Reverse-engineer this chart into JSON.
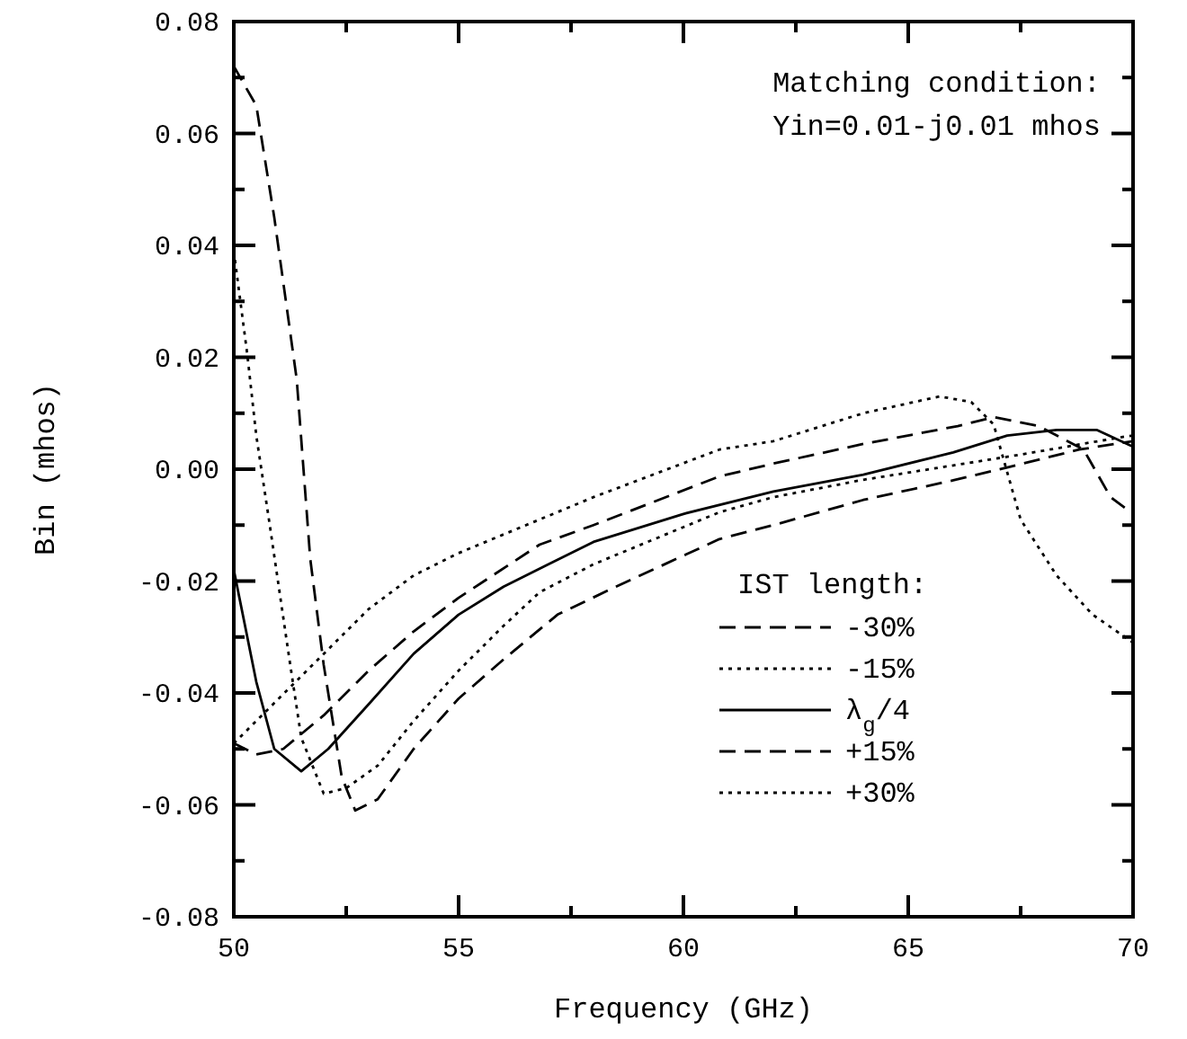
{
  "chart_data": {
    "type": "line",
    "xlabel": "Frequency (GHz)",
    "ylabel": "Bin (mhos)",
    "legend_title": "IST length:",
    "legend": "bottom right",
    "grid": false,
    "annotations": [
      "Matching condition:",
      "Yin=0.01-j0.01 mhos"
    ],
    "xlim": [
      50,
      70
    ],
    "xticks": [
      50,
      {
        "value": 52.5,
        "label": null
      },
      55,
      {
        "value": 57.5,
        "label": null
      },
      60,
      {
        "value": 62.5,
        "label": null
      },
      65,
      {
        "value": 67.5,
        "label": null
      },
      70
    ],
    "ylim": [
      -0.08,
      0.08
    ],
    "yticks": [
      {
        "value": -0.08,
        "label": "-0.08"
      },
      {
        "value": -0.07,
        "label": null
      },
      {
        "value": -0.06,
        "label": "-0.06"
      },
      {
        "value": -0.05,
        "label": null
      },
      {
        "value": -0.04,
        "label": "-0.04"
      },
      {
        "value": -0.03,
        "label": null
      },
      {
        "value": -0.02,
        "label": "-0.02"
      },
      {
        "value": -0.01,
        "label": null
      },
      {
        "value": 0,
        "label": "0.00"
      },
      {
        "value": 0.01,
        "label": null
      },
      {
        "value": 0.02,
        "label": "0.02"
      },
      {
        "value": 0.03,
        "label": null
      },
      {
        "value": 0.04,
        "label": "0.04"
      },
      {
        "value": 0.05,
        "label": null
      },
      {
        "value": 0.06,
        "label": "0.06"
      },
      {
        "value": 0.07,
        "label": null
      },
      {
        "value": 0.08,
        "label": "0.08"
      }
    ],
    "series": [
      {
        "name": "-30%",
        "color": "#000000",
        "line_style": "dashed",
        "x": [
          50,
          50.5,
          50.9,
          51.4,
          51.7,
          52,
          52.4,
          52.7,
          53.2,
          54,
          55,
          56,
          57.2,
          58.5,
          60.8,
          62,
          64,
          66,
          67.2,
          68.8,
          70
        ],
        "values": [
          0.072,
          0.065,
          0.045,
          0.016,
          -0.016,
          -0.035,
          -0.055,
          -0.061,
          -0.059,
          -0.05,
          -0.041,
          -0.034,
          -0.026,
          -0.021,
          -0.0125,
          -0.01,
          -0.0055,
          -0.002,
          0.0003,
          0.0035,
          0.005
        ]
      },
      {
        "name": "-15%",
        "color": "#000000",
        "line_style": "dotted",
        "x": [
          50,
          50.3,
          50.5,
          50.8,
          51.2,
          51.5,
          52,
          52.5,
          53.2,
          54,
          55,
          56,
          56.8,
          58,
          60.8,
          62,
          64,
          67.5,
          69.8,
          70
        ],
        "values": [
          0.039,
          0.0205,
          0.006,
          -0.01,
          -0.032,
          -0.048,
          -0.058,
          -0.057,
          -0.053,
          -0.045,
          -0.036,
          -0.028,
          -0.022,
          -0.017,
          -0.0077,
          -0.005,
          -0.0019,
          0.0026,
          0.0058,
          0.006
        ]
      },
      {
        "name": "λ$_{g}$/4",
        "color": "#000000",
        "line_style": "solid",
        "x": [
          50,
          50.5,
          50.9,
          51.5,
          52.1,
          53,
          54,
          55,
          56,
          57,
          58,
          60,
          62,
          64,
          66,
          67.2,
          68.3,
          69.2,
          70
        ],
        "values": [
          -0.018,
          -0.038,
          -0.05,
          -0.054,
          -0.05,
          -0.042,
          -0.033,
          -0.026,
          -0.021,
          -0.017,
          -0.013,
          -0.008,
          -0.004,
          -0.001,
          0.003,
          0.006,
          0.007,
          0.007,
          0.004
        ]
      },
      {
        "name": "+15%",
        "color": "#000000",
        "line_style": "dashed",
        "x": [
          50,
          50.5,
          51.1,
          52,
          53,
          54,
          55,
          56.8,
          58,
          60.8,
          62,
          64,
          66.1,
          66.9,
          67.9,
          68.9,
          69.5,
          70
        ],
        "values": [
          -0.049,
          -0.051,
          -0.05,
          -0.044,
          -0.036,
          -0.029,
          -0.023,
          -0.0135,
          -0.01,
          -0.0013,
          0.001,
          0.0045,
          0.0077,
          0.0093,
          0.0077,
          0.0035,
          -0.005,
          -0.008
        ]
      },
      {
        "name": "+30%",
        "color": "#000000",
        "line_style": "dotted",
        "x": [
          50,
          51,
          52,
          53,
          54,
          55,
          56.8,
          58,
          60.8,
          62,
          64,
          65.7,
          66.4,
          66.9,
          67.5,
          68.3,
          69.1,
          70
        ],
        "values": [
          -0.049,
          -0.041,
          -0.033,
          -0.025,
          -0.019,
          -0.015,
          -0.009,
          -0.005,
          0.0035,
          0.005,
          0.01,
          0.013,
          0.012,
          0.008,
          -0.009,
          -0.019,
          -0.026,
          -0.031
        ]
      }
    ]
  }
}
